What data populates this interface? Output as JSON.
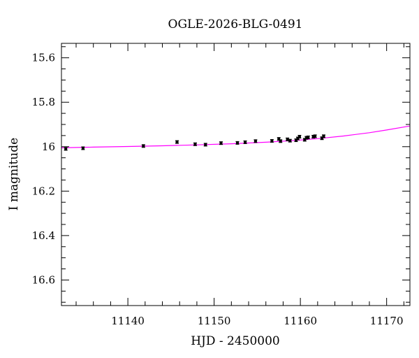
{
  "chart_data": {
    "type": "scatter",
    "title": "OGLE-2026-BLG-0491",
    "xlabel": "HJD - 2450000",
    "ylabel": "I magnitude",
    "xlim": [
      11132.3,
      11172.7
    ],
    "ylim": [
      16.715,
      15.535
    ],
    "y_inverted": true,
    "x_ticks": [
      11140,
      11150,
      11160,
      11170
    ],
    "x_tick_labels": [
      "11140",
      "11150",
      "11160",
      "11170"
    ],
    "y_ticks": [
      15.6,
      15.8,
      16.0,
      16.2,
      16.4,
      16.6
    ],
    "y_tick_labels": [
      "15.6",
      "15.8",
      "16",
      "16.2",
      "16.4",
      "16.6"
    ],
    "grid": false,
    "series": [
      {
        "kind": "points",
        "color": "#000000",
        "x": [
          11132.8,
          11134.8,
          11141.8,
          11145.7,
          11147.8,
          11149.0,
          11150.8,
          11152.7,
          11153.6,
          11154.8,
          11156.7,
          11157.5,
          11157.7,
          11158.5,
          11158.8,
          11159.5,
          11159.7,
          11159.9,
          11160.5,
          11160.7,
          11160.9,
          11161.5,
          11161.7,
          11162.5,
          11162.7
        ],
        "y": [
          16.01,
          16.007,
          15.997,
          15.979,
          15.989,
          15.991,
          15.984,
          15.983,
          15.98,
          15.975,
          15.974,
          15.965,
          15.975,
          15.967,
          15.973,
          15.971,
          15.963,
          15.955,
          15.969,
          15.96,
          15.958,
          15.955,
          15.953,
          15.962,
          15.953
        ],
        "err": [
          0.006,
          0.006,
          0.006,
          0.006,
          0.006,
          0.006,
          0.006,
          0.006,
          0.006,
          0.006,
          0.006,
          0.006,
          0.006,
          0.006,
          0.006,
          0.006,
          0.006,
          0.006,
          0.006,
          0.006,
          0.006,
          0.006,
          0.006,
          0.006,
          0.006
        ]
      },
      {
        "kind": "model",
        "color": "#ff00ff",
        "x": [
          11132.3,
          11136,
          11140,
          11144,
          11148,
          11152,
          11156,
          11159,
          11162,
          11165,
          11168,
          11170,
          11172.7
        ],
        "y": [
          16.005,
          16.002,
          15.999,
          15.996,
          15.992,
          15.987,
          15.98,
          15.973,
          15.964,
          15.952,
          15.937,
          15.925,
          15.907
        ]
      }
    ]
  }
}
